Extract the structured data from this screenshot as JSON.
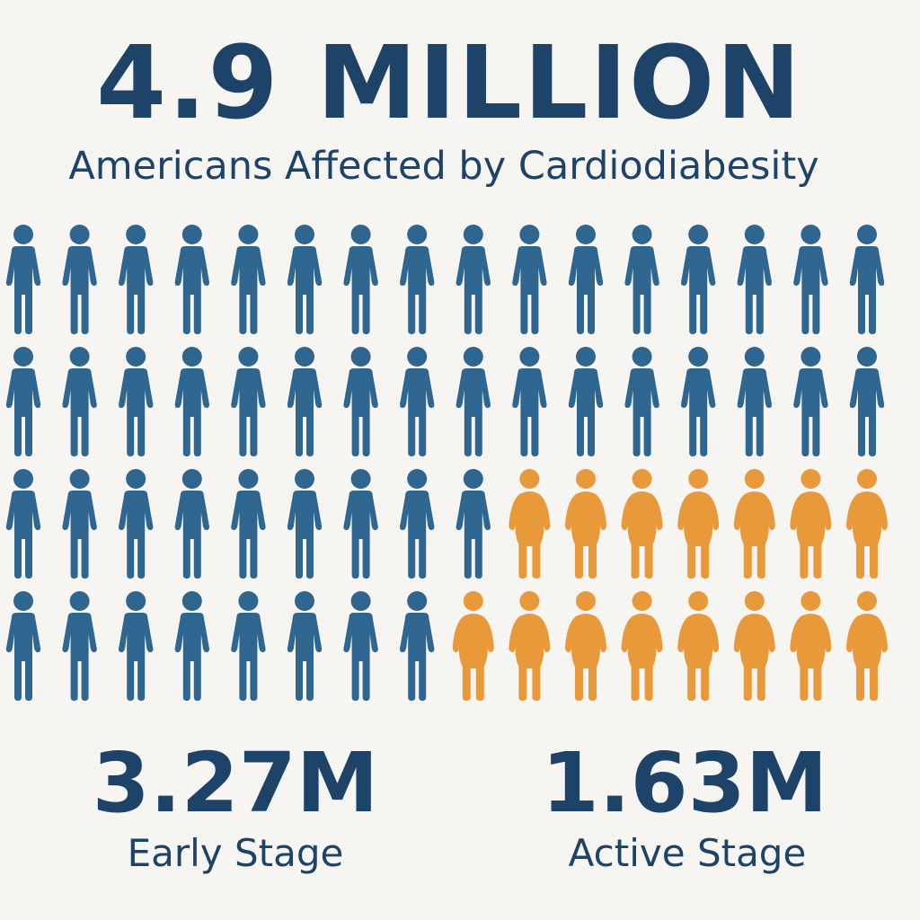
{
  "headline": "4.9 MILLION",
  "subtitle": "Americans Affected by Cardiodiabesity",
  "stats": [
    {
      "value": "3.27M",
      "label": "Early Stage"
    },
    {
      "value": "1.63M",
      "label": "Active Stage"
    }
  ],
  "chart_data": {
    "type": "pictogram",
    "columns": 16,
    "rows": [
      {
        "early": 16,
        "active": 0
      },
      {
        "early": 16,
        "active": 0
      },
      {
        "early": 9,
        "active": 7
      },
      {
        "early": 8,
        "active": 8
      }
    ],
    "categories": [
      "Early Stage",
      "Active Stage"
    ],
    "values_millions": [
      3.27,
      1.63
    ],
    "colors": {
      "early": "#2f6690",
      "active": "#e8993a",
      "text": "#1e4368",
      "background": "#f7f5f1"
    }
  }
}
